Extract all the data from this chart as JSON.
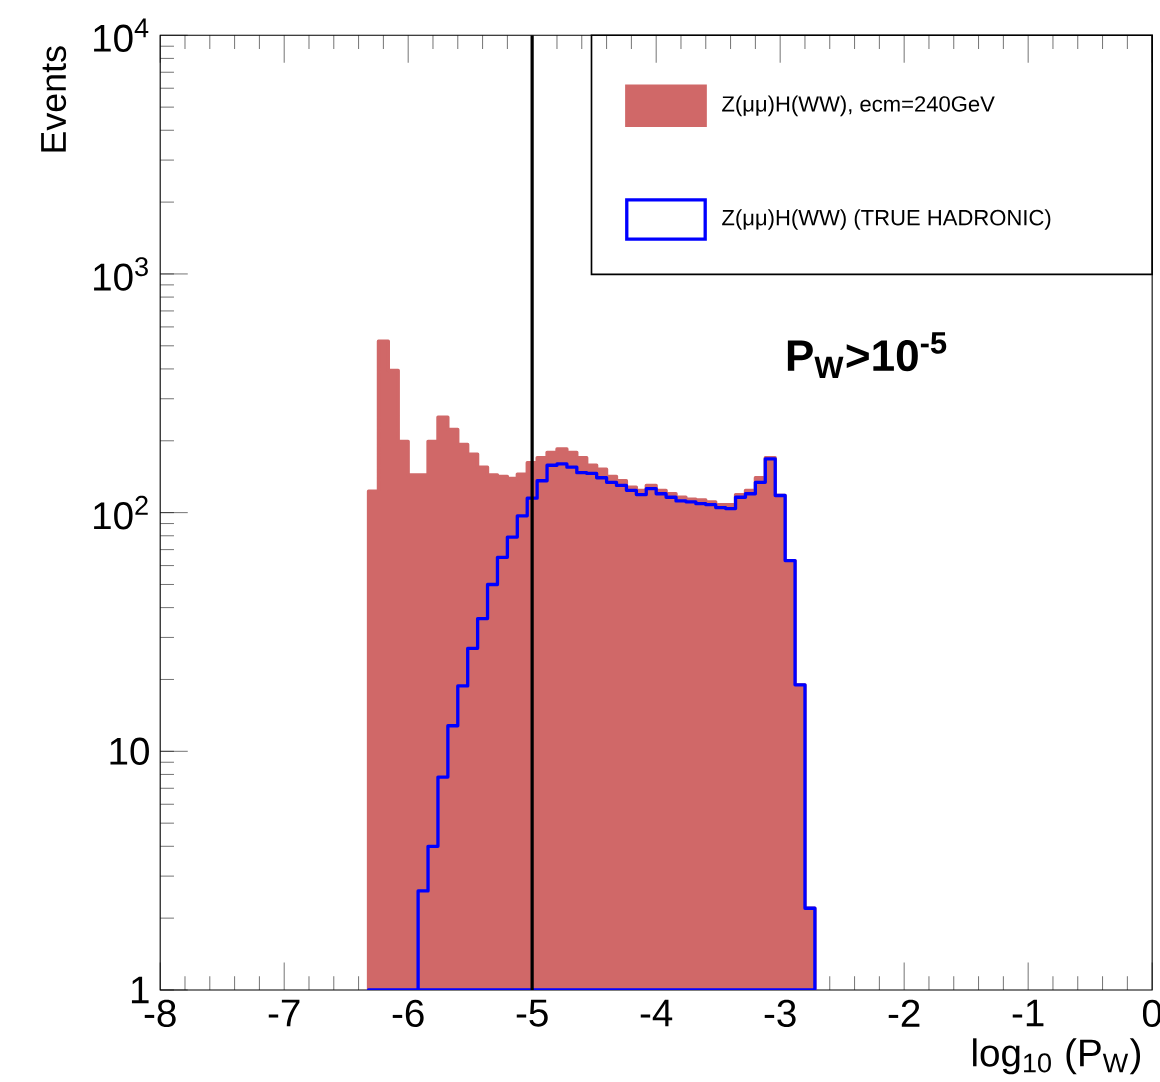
{
  "chart_data": {
    "type": "histogram",
    "xlabel": "log$_{10}$ (P$_{W}$)",
    "ylabel": "Events",
    "bins": [
      -6.32,
      -6.24,
      -6.16,
      -6.08,
      -6.0,
      -5.92,
      -5.84,
      -5.76,
      -5.68,
      -5.6,
      -5.52,
      -5.44,
      -5.36,
      -5.28,
      -5.2,
      -5.12,
      -5.04,
      -4.96,
      -4.88,
      -4.8,
      -4.72,
      -4.64,
      -4.56,
      -4.48,
      -4.4,
      -4.32,
      -4.24,
      -4.16,
      -4.08,
      -4.0,
      -3.92,
      -3.84,
      -3.76,
      -3.68,
      -3.6,
      -3.52,
      -3.44,
      -3.36,
      -3.28,
      -3.2,
      -3.12,
      -3.04,
      -2.96,
      -2.88,
      -2.8,
      -2.72
    ],
    "series": [
      {
        "name": "Z(μμ)H(WW), ecm=240GeV",
        "color": "#d06868",
        "values": [
          123,
          523,
          394,
          199,
          144,
          144,
          199,
          251,
          223,
          193,
          176,
          155,
          144,
          142,
          139,
          145,
          162,
          170,
          179,
          185,
          179,
          170,
          158,
          152,
          142,
          136,
          128,
          124,
          130,
          124,
          120,
          116,
          114,
          113,
          111,
          108,
          108,
          119,
          124,
          140,
          170,
          118,
          63,
          19,
          2.2
        ]
      },
      {
        "name": "Z(μμ)H(WW) (TRUE HADRONIC)",
        "color": "#0000ff",
        "values": [
          null,
          null,
          null,
          null,
          null,
          2.6,
          4,
          7.8,
          12.8,
          18.8,
          27,
          36,
          50,
          65,
          79,
          97,
          115,
          136,
          158,
          160,
          155,
          147,
          146,
          140,
          134,
          130,
          124,
          119,
          126,
          120,
          116,
          112,
          111,
          109,
          108,
          105,
          104,
          116,
          120,
          134,
          168,
          118,
          63,
          19,
          2.2
        ]
      }
    ],
    "xlim": [
      -8,
      0
    ],
    "ylim": [
      1,
      10000
    ],
    "xticks": [
      -8,
      -7,
      -6,
      -5,
      -4,
      -3,
      -2,
      -1,
      0
    ],
    "yticks": [
      1,
      10,
      {
        "value": 100,
        "label": "10$^{2}$"
      },
      {
        "value": 1000,
        "label": "10$^{3}$"
      },
      {
        "value": 10000,
        "label": "10$^{4}$"
      }
    ],
    "log": "y",
    "legend": "top right",
    "ref_lines": [
      {
        "axis": "x",
        "value": -5,
        "color": "#000000"
      }
    ],
    "annotations": [
      "P$_{W}$>10$^{-5}$"
    ]
  }
}
